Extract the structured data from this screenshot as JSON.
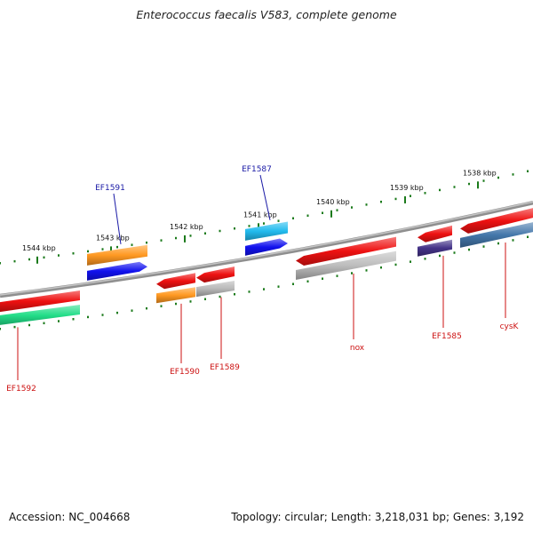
{
  "title": "Enterococcus faecalis V583, complete genome",
  "footer": {
    "accession": "Accession: NC_004668",
    "topology": "Topology: circular; Length: 3,218,031 bp; Genes: 3,192"
  },
  "colors": {
    "backbone": "#8f8f8f",
    "tick": "#1b7a1b",
    "ruler_label": "#111111",
    "label_forward": "#1a1aa6",
    "label_reverse": "#cc1111"
  },
  "ruler": [
    {
      "label": "1544 kbp",
      "kbp": 1544
    },
    {
      "label": "1543 kbp",
      "kbp": 1543
    },
    {
      "label": "1542 kbp",
      "kbp": 1542
    },
    {
      "label": "1541 kbp",
      "kbp": 1541
    },
    {
      "label": "1540 kbp",
      "kbp": 1540
    },
    {
      "label": "1539 kbp",
      "kbp": 1539
    },
    {
      "label": "1538 kbp",
      "kbp": 1538
    }
  ],
  "genes": [
    {
      "name": "EF1592",
      "strand": "reverse",
      "arrow_color": "#ee1111",
      "feature_color": "#22dd88"
    },
    {
      "name": "EF1591",
      "strand": "forward",
      "arrow_color": "#1111ee",
      "feature_color": "#ff9922"
    },
    {
      "name": "EF1590",
      "strand": "reverse",
      "arrow_color": "#ee1111",
      "feature_color": "#ff9922"
    },
    {
      "name": "EF1589",
      "strand": "reverse",
      "arrow_color": "#ee1111",
      "feature_color": "#b8b8b8"
    },
    {
      "name": "EF1587",
      "strand": "forward",
      "arrow_color": "#1111ee",
      "feature_color": "#22bbee"
    },
    {
      "name": "nox",
      "strand": "reverse",
      "arrow_color": "#ee1111",
      "feature_color": "#bdbdbd"
    },
    {
      "name": "EF1585",
      "strand": "reverse",
      "arrow_color": "#ee1111",
      "feature_color": "#443388"
    },
    {
      "name": "cysK",
      "strand": "reverse",
      "arrow_color": "#ee1111",
      "feature_color": "#4477aa"
    }
  ]
}
